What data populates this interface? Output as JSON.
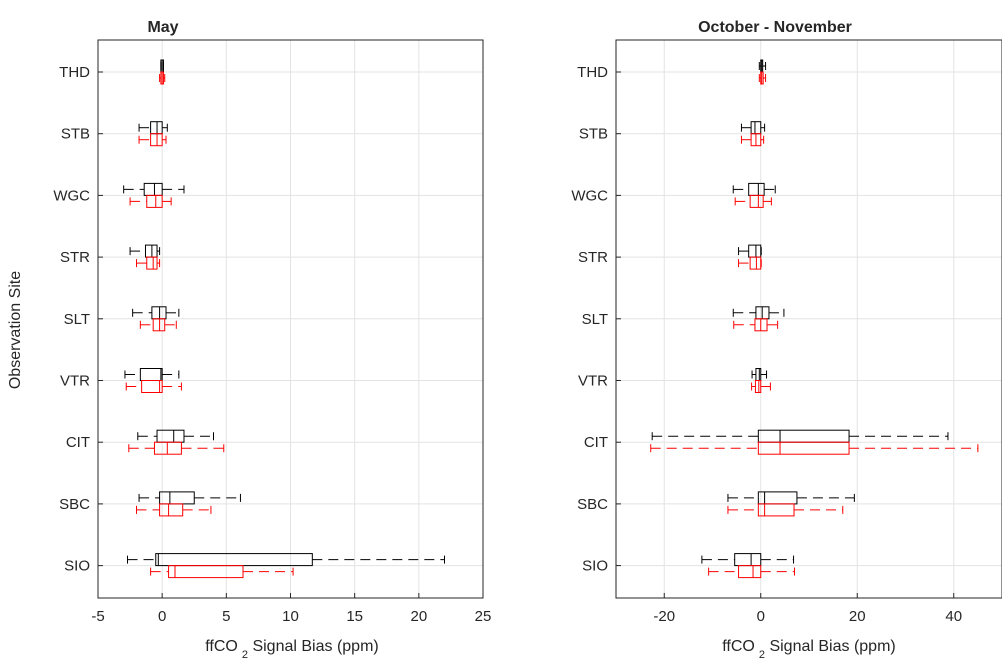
{
  "chart_data": [
    {
      "type": "boxplot",
      "title": "May",
      "xlabel": {
        "prefix": "ffCO",
        "subscript": "2",
        "suffix": " Signal Bias (ppm)"
      },
      "ylabel": "Observation Site",
      "xlim": [
        -5,
        25
      ],
      "xticks": [
        -5,
        0,
        5,
        10,
        15,
        20,
        25
      ],
      "grid": true,
      "categories": [
        "THD",
        "STB",
        "WGC",
        "STR",
        "SLT",
        "VTR",
        "CIT",
        "SBC",
        "SIO"
      ],
      "series": [
        {
          "color": "#000000",
          "boxes": [
            {
              "whisker_low": -0.1,
              "q1": -0.1,
              "median": 0.0,
              "q3": 0.1,
              "whisker_high": 0.1
            },
            {
              "whisker_low": -1.8,
              "q1": -0.9,
              "median": -0.4,
              "q3": 0.0,
              "whisker_high": 0.4
            },
            {
              "whisker_low": -3.0,
              "q1": -1.4,
              "median": -0.6,
              "q3": 0.0,
              "whisker_high": 1.7
            },
            {
              "whisker_low": -2.5,
              "q1": -1.3,
              "median": -0.8,
              "q3": -0.4,
              "whisker_high": -0.2
            },
            {
              "whisker_low": -2.3,
              "q1": -0.8,
              "median": -0.2,
              "q3": 0.3,
              "whisker_high": 1.3
            },
            {
              "whisker_low": -2.9,
              "q1": -1.7,
              "median": -0.1,
              "q3": 0.0,
              "whisker_high": 1.3
            },
            {
              "whisker_low": -1.9,
              "q1": -0.4,
              "median": 0.9,
              "q3": 1.7,
              "whisker_high": 4.0
            },
            {
              "whisker_low": -1.8,
              "q1": -0.2,
              "median": 0.6,
              "q3": 2.5,
              "whisker_high": 6.1
            },
            {
              "whisker_low": -2.7,
              "q1": -0.5,
              "median": -0.3,
              "q3": 11.7,
              "whisker_high": 22.0
            }
          ]
        },
        {
          "color": "#ff0000",
          "boxes": [
            {
              "whisker_low": -0.2,
              "q1": -0.1,
              "median": 0.0,
              "q3": 0.1,
              "whisker_high": 0.2
            },
            {
              "whisker_low": -1.8,
              "q1": -0.9,
              "median": -0.4,
              "q3": 0.0,
              "whisker_high": 0.3
            },
            {
              "whisker_low": -2.5,
              "q1": -1.2,
              "median": -0.5,
              "q3": 0.0,
              "whisker_high": 0.7
            },
            {
              "whisker_low": -2.0,
              "q1": -1.2,
              "median": -0.7,
              "q3": -0.4,
              "whisker_high": -0.2
            },
            {
              "whisker_low": -1.7,
              "q1": -0.7,
              "median": -0.2,
              "q3": 0.2,
              "whisker_high": 1.1
            },
            {
              "whisker_low": -2.8,
              "q1": -1.6,
              "median": -0.2,
              "q3": 0.0,
              "whisker_high": 1.5
            },
            {
              "whisker_low": -2.6,
              "q1": -0.6,
              "median": 0.4,
              "q3": 1.5,
              "whisker_high": 4.8
            },
            {
              "whisker_low": -2.0,
              "q1": -0.2,
              "median": 0.5,
              "q3": 1.6,
              "whisker_high": 3.8
            },
            {
              "whisker_low": -0.9,
              "q1": 0.5,
              "median": 1.0,
              "q3": 6.3,
              "whisker_high": 10.2
            }
          ]
        }
      ]
    },
    {
      "type": "boxplot",
      "title": "October - November",
      "xlabel": {
        "prefix": "ffCO",
        "subscript": "2",
        "suffix": " Signal Bias (ppm)"
      },
      "ylabel": "",
      "xlim": [
        -30,
        50
      ],
      "xticks": [
        -20,
        0,
        20,
        40
      ],
      "grid": true,
      "categories": [
        "THD",
        "STB",
        "WGC",
        "STR",
        "SLT",
        "VTR",
        "CIT",
        "SBC",
        "SIO"
      ],
      "series": [
        {
          "color": "#000000",
          "boxes": [
            {
              "whisker_low": -0.3,
              "q1": 0.0,
              "median": 0.2,
              "q3": 0.4,
              "whisker_high": 1.0
            },
            {
              "whisker_low": -4.0,
              "q1": -2.0,
              "median": -1.2,
              "q3": 0.0,
              "whisker_high": 0.8
            },
            {
              "whisker_low": -5.7,
              "q1": -2.5,
              "median": -0.5,
              "q3": 0.7,
              "whisker_high": 3.0
            },
            {
              "whisker_low": -4.6,
              "q1": -2.5,
              "median": -1.0,
              "q3": 0.0,
              "whisker_high": 0.1
            },
            {
              "whisker_low": -5.7,
              "q1": -1.0,
              "median": 0.3,
              "q3": 1.7,
              "whisker_high": 4.8
            },
            {
              "whisker_low": -1.8,
              "q1": -1.0,
              "median": -0.3,
              "q3": 0.0,
              "whisker_high": 1.2
            },
            {
              "whisker_low": -22.5,
              "q1": -0.5,
              "median": 4.0,
              "q3": 18.3,
              "whisker_high": 38.8
            },
            {
              "whisker_low": -6.8,
              "q1": -0.5,
              "median": 0.8,
              "q3": 7.5,
              "whisker_high": 19.4
            },
            {
              "whisker_low": -12.2,
              "q1": -5.4,
              "median": -2.0,
              "q3": 0.0,
              "whisker_high": 6.8
            }
          ]
        },
        {
          "color": "#ff0000",
          "boxes": [
            {
              "whisker_low": -0.3,
              "q1": 0.0,
              "median": 0.2,
              "q3": 0.5,
              "whisker_high": 1.0
            },
            {
              "whisker_low": -4.0,
              "q1": -2.0,
              "median": -1.0,
              "q3": 0.0,
              "whisker_high": 0.6
            },
            {
              "whisker_low": -5.3,
              "q1": -2.2,
              "median": -0.5,
              "q3": 0.5,
              "whisker_high": 2.2
            },
            {
              "whisker_low": -4.6,
              "q1": -2.2,
              "median": -0.9,
              "q3": 0.0,
              "whisker_high": 0.1
            },
            {
              "whisker_low": -5.6,
              "q1": -1.2,
              "median": 0.0,
              "q3": 1.3,
              "whisker_high": 3.5
            },
            {
              "whisker_low": -1.9,
              "q1": -1.1,
              "median": -0.4,
              "q3": 0.0,
              "whisker_high": 2.0
            },
            {
              "whisker_low": -22.8,
              "q1": -0.5,
              "median": 4.0,
              "q3": 18.3,
              "whisker_high": 45.0
            },
            {
              "whisker_low": -6.8,
              "q1": -0.5,
              "median": 0.8,
              "q3": 6.9,
              "whisker_high": 17.0
            },
            {
              "whisker_low": -10.8,
              "q1": -4.6,
              "median": -1.6,
              "q3": 0.0,
              "whisker_high": 7.0
            }
          ]
        }
      ]
    }
  ]
}
